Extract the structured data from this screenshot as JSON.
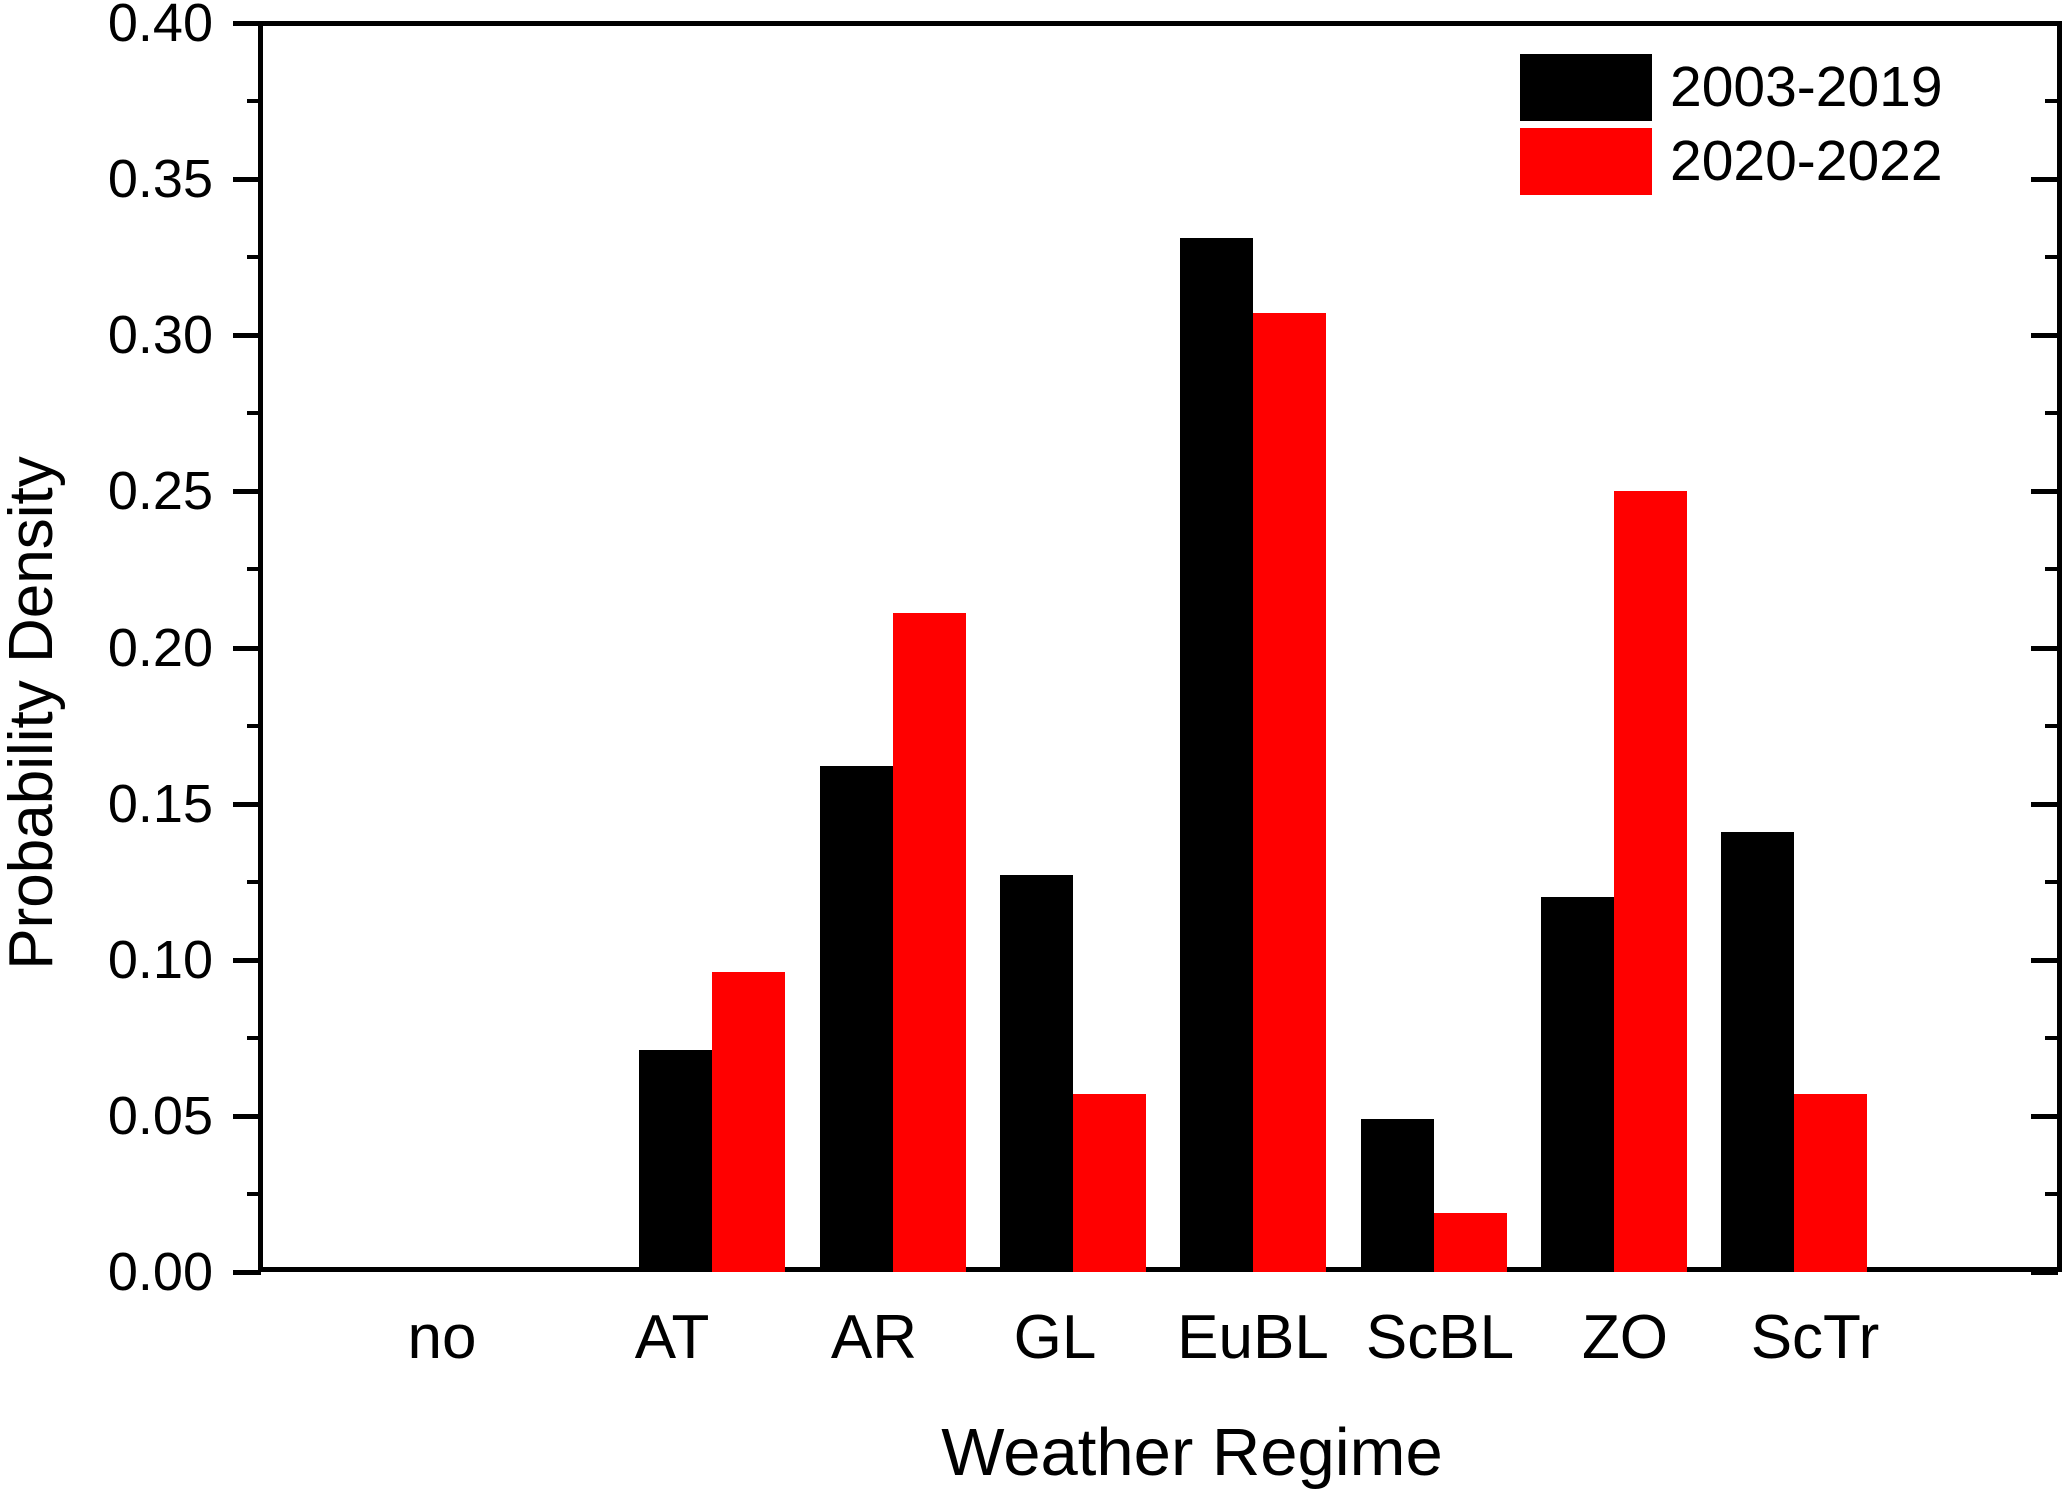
{
  "chart_data": {
    "type": "bar",
    "title": "",
    "xlabel": "Weather Regime",
    "ylabel": "Probability Density",
    "categories": [
      "no",
      "AT",
      "AR",
      "GL",
      "EuBL",
      "ScBL",
      "ZO",
      "ScTr"
    ],
    "series": [
      {
        "name": "2003-2019",
        "color": "#000000",
        "values": [
          0,
          0.071,
          0.162,
          0.127,
          0.331,
          0.049,
          0.12,
          0.141
        ]
      },
      {
        "name": "2020-2022",
        "color": "#ff0000",
        "values": [
          0,
          0.096,
          0.211,
          0.057,
          0.307,
          0.019,
          0.25,
          0.057
        ]
      }
    ],
    "ylim": [
      0,
      0.4
    ],
    "ytick_step": 0.05,
    "ytick_minor_step": 0.025,
    "ytick_labels": [
      "0.00",
      "0.05",
      "0.10",
      "0.15",
      "0.20",
      "0.25",
      "0.30",
      "0.35",
      "0.40"
    ],
    "legend_position": "top-right",
    "grid": false,
    "axis_color": "#000000",
    "background_color": "#ffffff"
  }
}
